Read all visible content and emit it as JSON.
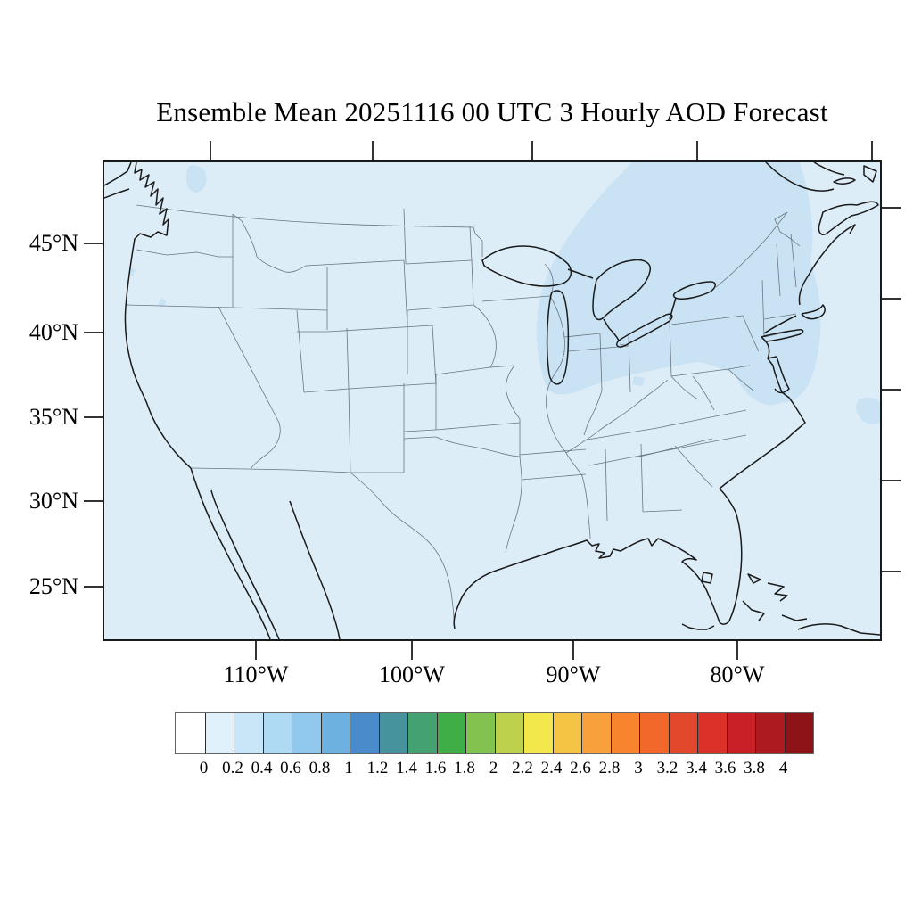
{
  "title": "Ensemble Mean 20251116 00 UTC 3 Hourly AOD Forecast",
  "axes": {
    "lat_ticks": [
      "45°N",
      "40°N",
      "35°N",
      "30°N",
      "25°N"
    ],
    "lon_ticks": [
      "110°W",
      "100°W",
      "90°W",
      "80°W"
    ]
  },
  "colorbar": {
    "tick_labels": [
      "0",
      "0.2",
      "0.4",
      "0.6",
      "0.8",
      "1",
      "1.2",
      "1.4",
      "1.6",
      "1.8",
      "2",
      "2.2",
      "2.4",
      "2.6",
      "2.8",
      "3",
      "3.2",
      "3.4",
      "3.6",
      "3.8",
      "4"
    ],
    "cell_colors": [
      "#ffffff",
      "#e1f1fb",
      "#c9e6f8",
      "#aedaf4",
      "#90c9ed",
      "#6db1e0",
      "#4a8ccb",
      "#46939e",
      "#44a272",
      "#3fae46",
      "#82c24f",
      "#bdd14d",
      "#f2e84b",
      "#f6c445",
      "#f8a03c",
      "#f8852e",
      "#f2682a",
      "#e4482c",
      "#da3228",
      "#c92028",
      "#ad1a20",
      "#8e1318"
    ]
  },
  "map": {
    "background_color": "#dcedf8",
    "patch_color": "#c9e3f4",
    "coast_color": "#1a1a1a",
    "border_color": "#6a7580"
  },
  "chart_data": {
    "type": "heatmap",
    "title": "Ensemble Mean 20251116 00 UTC 3 Hourly AOD Forecast",
    "variable": "Aerosol Optical Depth (AOD)",
    "region": "Continental United States with southern Canada, northern Mexico, Gulf of Mexico and western Atlantic",
    "x_tick_labels": [
      "110°W",
      "100°W",
      "90°W",
      "80°W"
    ],
    "y_tick_labels": [
      "45°N",
      "40°N",
      "35°N",
      "30°N",
      "25°N"
    ],
    "colorbar_levels": [
      0,
      0.2,
      0.4,
      0.6,
      0.8,
      1,
      1.2,
      1.4,
      1.6,
      1.8,
      2,
      2.2,
      2.4,
      2.6,
      2.8,
      3,
      3.2,
      3.4,
      3.6,
      3.8,
      4
    ],
    "colorbar_colors": [
      "#ffffff",
      "#e1f1fb",
      "#c9e6f8",
      "#aedaf4",
      "#90c9ed",
      "#6db1e0",
      "#4a8ccb",
      "#46939e",
      "#44a272",
      "#3fae46",
      "#82c24f",
      "#bdd14d",
      "#f2e84b",
      "#f6c445",
      "#f8a03c",
      "#f8852e",
      "#f2682a",
      "#e4482c",
      "#da3228",
      "#c92028",
      "#ad1a20",
      "#8e1318"
    ],
    "legend_position": "bottom",
    "grid": false,
    "values_summary": [
      {
        "region": "most of CONUS and surrounding ocean",
        "aod": "0–0.2"
      },
      {
        "region": "Great Lakes / Ontario / New York / New England corridor",
        "aod": "0.2–0.4"
      },
      {
        "region": "small patch western Atlantic at eastern map edge (~35N)",
        "aod": "0.2–0.4"
      },
      {
        "region": "small patches British Columbia and Oregon coast",
        "aod": "0.2–0.4"
      }
    ]
  }
}
